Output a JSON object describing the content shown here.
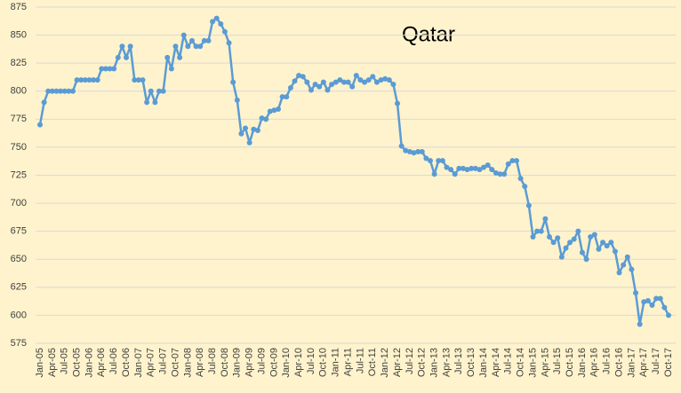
{
  "chart_data": {
    "type": "line",
    "title": "Qatar",
    "categories": [
      "Jan-05",
      null,
      null,
      "Apr-05",
      null,
      null,
      "Jul-05",
      null,
      null,
      "Oct-05",
      null,
      null,
      "Jan-06",
      null,
      null,
      "Apr-06",
      null,
      null,
      "Jul-06",
      null,
      null,
      "Oct-06",
      null,
      null,
      "Jan-07",
      null,
      null,
      "Apr-07",
      null,
      null,
      "Jul-07",
      null,
      null,
      "Oct-07",
      null,
      null,
      "Jan-08",
      null,
      null,
      "Apr-08",
      null,
      null,
      "Jul-08",
      null,
      null,
      "Oct-08",
      null,
      null,
      "Jan-09",
      null,
      null,
      "Apr-09",
      null,
      null,
      "Jul-09",
      null,
      null,
      "Oct-09",
      null,
      null,
      "Jan-10",
      null,
      null,
      "Apr-10",
      null,
      null,
      "Jul-10",
      null,
      null,
      "Oct-10",
      null,
      null,
      "Jan-11",
      null,
      null,
      "Apr-11",
      null,
      null,
      "Jul-11",
      null,
      null,
      "Oct-11",
      null,
      null,
      "Jan-12",
      null,
      null,
      "Apr-12",
      null,
      null,
      "Jul-12",
      null,
      null,
      "Oct-12",
      null,
      null,
      "Jan-13",
      null,
      null,
      "Apr-13",
      null,
      null,
      "Jul-13",
      null,
      null,
      "Oct-13",
      null,
      null,
      "Jan-14",
      null,
      null,
      "Apr-14",
      null,
      null,
      "Jul-14",
      null,
      null,
      "Oct-14",
      null,
      null,
      "Jan-15",
      null,
      null,
      "Apr-15",
      null,
      null,
      "Jul-15",
      null,
      null,
      "Oct-15",
      null,
      null,
      "Jan-16",
      null,
      null,
      "Apr-16",
      null,
      null,
      "Jul-16",
      null,
      null,
      "Oct-16",
      null,
      null,
      "Jan-17",
      null,
      null,
      "Apr-17",
      null,
      null,
      "Jul-17",
      null,
      null,
      "Oct-17"
    ],
    "values": [
      770,
      790,
      800,
      800,
      800,
      800,
      800,
      800,
      800,
      810,
      810,
      810,
      810,
      810,
      810,
      820,
      820,
      820,
      820,
      830,
      840,
      830,
      840,
      810,
      810,
      810,
      790,
      800,
      790,
      800,
      800,
      830,
      820,
      840,
      830,
      850,
      840,
      845,
      840,
      840,
      845,
      845,
      862,
      865,
      860,
      853,
      843,
      808,
      792,
      762,
      767,
      754,
      766,
      765,
      776,
      775,
      782,
      783,
      784,
      795,
      795,
      803,
      809,
      814,
      813,
      808,
      801,
      806,
      804,
      808,
      801,
      806,
      808,
      810,
      808,
      808,
      804,
      814,
      810,
      808,
      810,
      813,
      808,
      810,
      811,
      810,
      806,
      789,
      751,
      747,
      746,
      745,
      746,
      746,
      740,
      738,
      726,
      738,
      738,
      732,
      730,
      726,
      731,
      731,
      730,
      731,
      731,
      730,
      732,
      734,
      730,
      727,
      726,
      726,
      735,
      738,
      738,
      722,
      715,
      698,
      670,
      675,
      675,
      686,
      670,
      665,
      669,
      652,
      660,
      665,
      668,
      675,
      656,
      650,
      670,
      672,
      659,
      665,
      662,
      665,
      657,
      638,
      645,
      652,
      641,
      620,
      592,
      612,
      613,
      609,
      615,
      615,
      607,
      600
    ],
    "color": "#5b9bd5",
    "ylim": [
      575,
      875
    ],
    "yticks": [
      575,
      600,
      625,
      650,
      675,
      700,
      725,
      750,
      775,
      800,
      825,
      850,
      875
    ],
    "grid": true
  }
}
